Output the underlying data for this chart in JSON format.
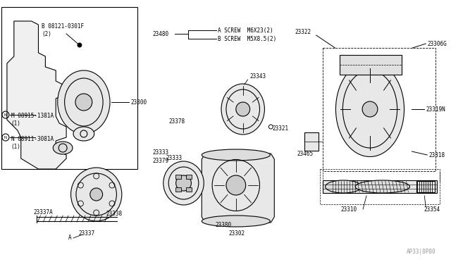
{
  "bg_color": "#ffffff",
  "line_color": "#000000",
  "gray_color": "#888888",
  "light_gray": "#cccccc",
  "fig_width": 6.4,
  "fig_height": 3.72,
  "labels": {
    "B_label": "B 08121-0301F\n(2)",
    "M_label": "M 08915-1381A\n(1)",
    "N_label": "N 08911-3081A\n(1)",
    "p23300": "23300",
    "p23480": "23480",
    "p23322": "23322",
    "p23343": "23343",
    "p23321": "23321",
    "p23306G": "23306G",
    "p23319N": "23319N",
    "p23318": "23318",
    "p23465": "23465",
    "p23378": "23378",
    "p23333a": "23333",
    "p23333b": "23333",
    "p23379": "23379",
    "p23380": "23380",
    "p23302": "23302",
    "p23338": "23338",
    "p23337": "23337",
    "p23337A": "23337A",
    "p23354": "23354",
    "p23310": "23310",
    "watermark": "AP33|0P80"
  }
}
